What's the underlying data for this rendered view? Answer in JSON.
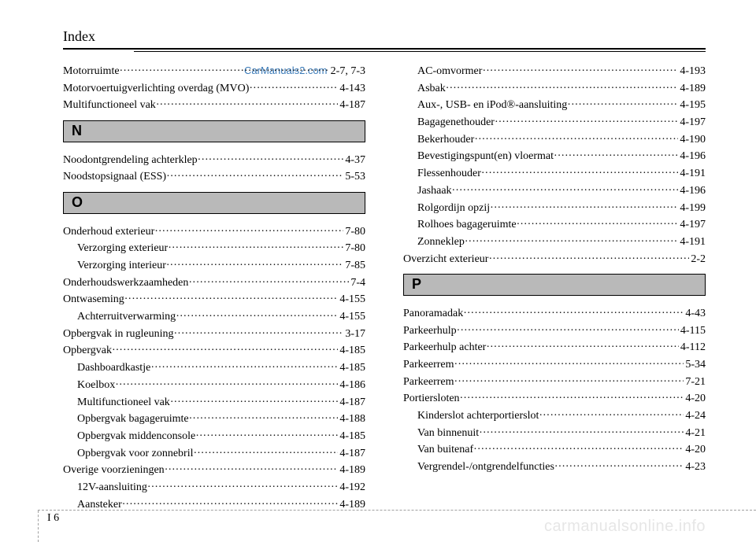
{
  "header": {
    "title": "Index"
  },
  "watermark": "CarManuals2.com",
  "footer_watermark": "carmanualsonline.info",
  "page_marker": {
    "section": "I",
    "number": "6"
  },
  "col1": {
    "pre": [
      {
        "label": "Motorruimte",
        "page": "2-7, 7-3",
        "indent": false
      },
      {
        "label": "Motorvoertuigverlichting overdag (MVO)",
        "page": "4-143",
        "indent": false
      },
      {
        "label": "Multifunctioneel vak",
        "page": "4-187",
        "indent": false
      }
    ],
    "sections": [
      {
        "letter": "N",
        "entries": [
          {
            "label": "Noodontgrendeling achterklep",
            "page": "4-37",
            "indent": false
          },
          {
            "label": "Noodstopsignaal (ESS)",
            "page": "5-53",
            "indent": false
          }
        ]
      },
      {
        "letter": "O",
        "entries": [
          {
            "label": "Onderhoud exterieur",
            "page": "7-80",
            "indent": false
          },
          {
            "label": "Verzorging exterieur",
            "page": "7-80",
            "indent": true
          },
          {
            "label": "Verzorging interieur",
            "page": "7-85",
            "indent": true
          },
          {
            "label": "Onderhoudswerkzaamheden",
            "page": "7-4",
            "indent": false
          },
          {
            "label": "Ontwaseming",
            "page": "4-155",
            "indent": false
          },
          {
            "label": "Achterruitverwarming",
            "page": "4-155",
            "indent": true
          },
          {
            "label": "Opbergvak in rugleuning",
            "page": "3-17",
            "indent": false
          },
          {
            "label": "Opbergvak",
            "page": "4-185",
            "indent": false
          },
          {
            "label": "Dashboardkastje",
            "page": "4-185",
            "indent": true
          },
          {
            "label": "Koelbox",
            "page": "4-186",
            "indent": true
          },
          {
            "label": "Multifunctioneel vak",
            "page": "4-187",
            "indent": true
          },
          {
            "label": "Opbergvak bagageruimte",
            "page": "4-188",
            "indent": true
          },
          {
            "label": "Opbergvak middenconsole",
            "page": "4-185",
            "indent": true
          },
          {
            "label": "Opbergvak voor zonnebril",
            "page": "4-187",
            "indent": true
          },
          {
            "label": "Overige voorzieningen",
            "page": "4-189",
            "indent": false
          },
          {
            "label": "12V-aansluiting",
            "page": "4-192",
            "indent": true
          },
          {
            "label": "Aansteker",
            "page": "4-189",
            "indent": true
          }
        ]
      }
    ]
  },
  "col2": {
    "pre": [
      {
        "label": "AC-omvormer",
        "page": "4-193",
        "indent": true
      },
      {
        "label": "Asbak",
        "page": "4-189",
        "indent": true
      },
      {
        "label": "Aux-, USB- en iPod®-aansluiting",
        "page": "4-195",
        "indent": true
      },
      {
        "label": "Bagagenethouder",
        "page": "4-197",
        "indent": true
      },
      {
        "label": "Bekerhouder",
        "page": "4-190",
        "indent": true
      },
      {
        "label": "Bevestigingspunt(en) vloermat",
        "page": "4-196",
        "indent": true
      },
      {
        "label": "Flessenhouder",
        "page": "4-191",
        "indent": true
      },
      {
        "label": "Jashaak",
        "page": "4-196",
        "indent": true
      },
      {
        "label": "Rolgordijn opzij",
        "page": "4-199",
        "indent": true
      },
      {
        "label": "Rolhoes bagageruimte",
        "page": "4-197",
        "indent": true
      },
      {
        "label": "Zonneklep",
        "page": "4-191",
        "indent": true
      },
      {
        "label": "Overzicht exterieur",
        "page": "2-2",
        "indent": false
      }
    ],
    "sections": [
      {
        "letter": "P",
        "entries": [
          {
            "label": "Panoramadak",
            "page": "4-43",
            "indent": false
          },
          {
            "label": "Parkeerhulp",
            "page": "4-115",
            "indent": false
          },
          {
            "label": "Parkeerhulp achter",
            "page": "4-112",
            "indent": false
          },
          {
            "label": "Parkeerrem",
            "page": "5-34",
            "indent": false
          },
          {
            "label": "Parkeerrem",
            "page": "7-21",
            "indent": false
          },
          {
            "label": "Portiersloten",
            "page": "4-20",
            "indent": false
          },
          {
            "label": "Kinderslot achterportierslot",
            "page": "4-24",
            "indent": true
          },
          {
            "label": "Van binnenuit",
            "page": "4-21",
            "indent": true
          },
          {
            "label": "Van buitenaf",
            "page": "4-20",
            "indent": true
          },
          {
            "label": "Vergrendel-/ontgrendelfuncties",
            "page": "4-23",
            "indent": true
          }
        ]
      }
    ]
  }
}
